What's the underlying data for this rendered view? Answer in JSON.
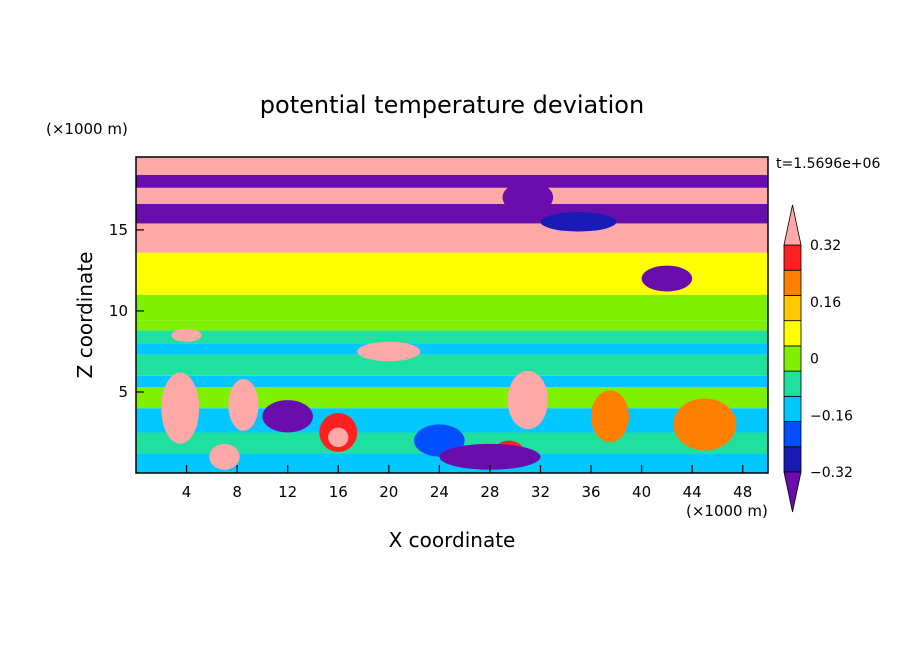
{
  "chart_data": {
    "type": "heatmap",
    "title": "potential temperature deviation",
    "xlabel": "X coordinate",
    "ylabel": "Z coordinate",
    "x_unit": "(×1000 m)",
    "y_unit": "(×1000 m)",
    "time_label": "t=1.5696e+06",
    "xlim": [
      0,
      50
    ],
    "ylim": [
      0,
      19.5
    ],
    "x_ticks": [
      "4",
      "8",
      "12",
      "16",
      "20",
      "24",
      "28",
      "32",
      "36",
      "40",
      "44",
      "48"
    ],
    "y_ticks": [
      "5",
      "10",
      "15"
    ],
    "colorbar": {
      "levels": [
        -0.4,
        -0.32,
        -0.24,
        -0.16,
        -0.08,
        0,
        0.08,
        0.16,
        0.24,
        0.32,
        0.4
      ],
      "tick_labels": [
        "0.32",
        "0.16",
        "0",
        "−0.16",
        "−0.32"
      ],
      "colors": [
        "#6a0dad",
        "#1a1ab4",
        "#0050ff",
        "#00c8ff",
        "#20e0a0",
        "#7ff000",
        "#ffff00",
        "#ffc800",
        "#ff8000",
        "#ff2020",
        "#ffa8a8"
      ],
      "extend": "both"
    }
  }
}
